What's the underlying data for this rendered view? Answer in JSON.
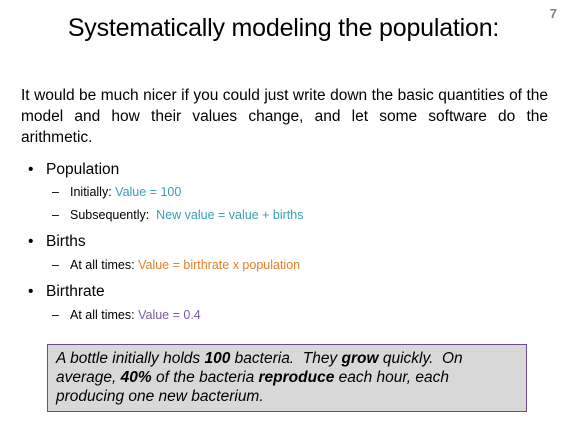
{
  "slide": {
    "number": "7",
    "title": "Systematically modeling the population:",
    "intro": "It would be much nicer if you could just write down the basic quantities of the model and how their values change, and let some software do the arithmetic."
  },
  "bullets": [
    {
      "label": "Population",
      "subs": [
        {
          "prefix": "Initially: ",
          "value": "Value = 100",
          "color": "#3a9fb5"
        },
        {
          "prefix": "Subsequently:  ",
          "value": "New value = value + births",
          "color": "#3a9fb5"
        }
      ]
    },
    {
      "label": "Births",
      "subs": [
        {
          "prefix": "At all times: ",
          "value": "Value = birthrate x population",
          "color": "#e0812a"
        }
      ]
    },
    {
      "label": "Birthrate",
      "subs": [
        {
          "prefix": "At all times: ",
          "value": "Value = 0.4",
          "color": "#7b5aa5"
        }
      ]
    }
  ],
  "note": {
    "t1": "A bottle initially holds ",
    "b1": "100",
    "t2": " bacteria.  They ",
    "b2": "grow",
    "t3": " quickly.  On average, ",
    "b3": "40%",
    "t4": " of the bacteria ",
    "b4": "reproduce",
    "t5": " each hour, each producing one new bacterium."
  },
  "glyphs": {
    "bullet": "•",
    "dash": "–"
  }
}
